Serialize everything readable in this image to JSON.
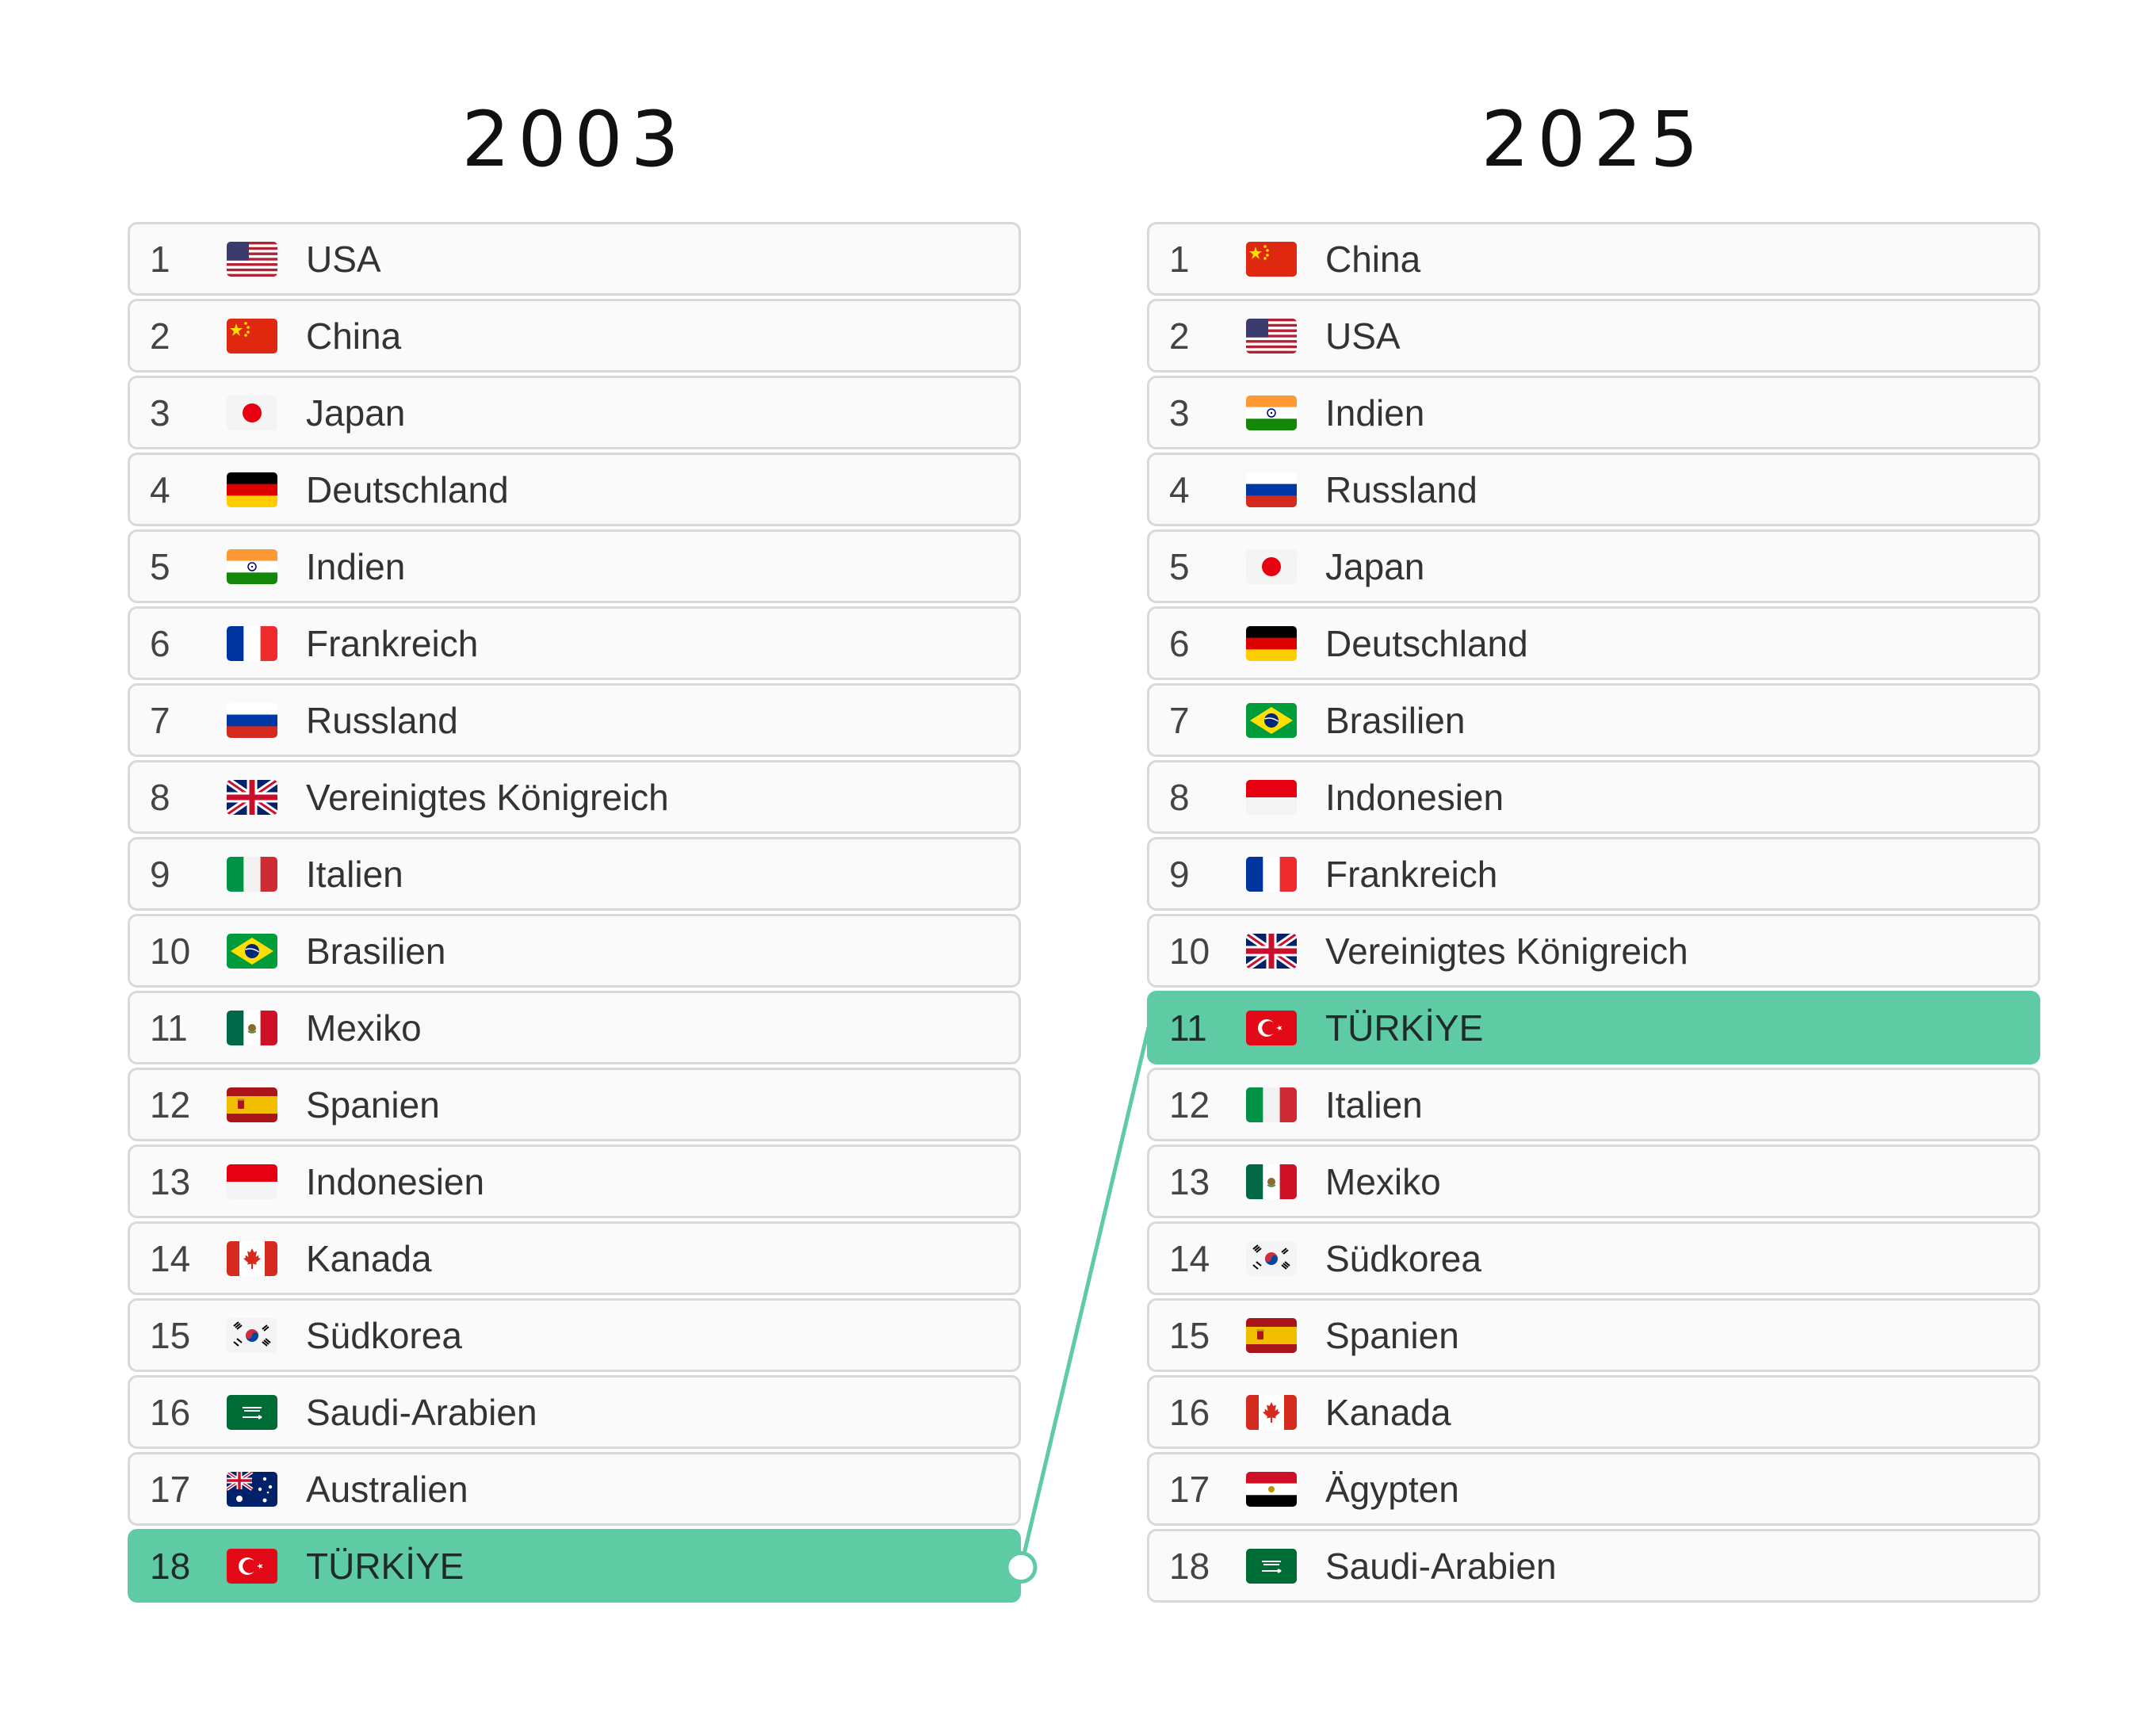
{
  "columns": [
    {
      "year": "2003",
      "rows": [
        {
          "rank": "1",
          "country": "USA",
          "flag": "us-flag-icon"
        },
        {
          "rank": "2",
          "country": "China",
          "flag": "cn-flag-icon"
        },
        {
          "rank": "3",
          "country": "Japan",
          "flag": "jp-flag-icon"
        },
        {
          "rank": "4",
          "country": "Deutschland",
          "flag": "de-flag-icon"
        },
        {
          "rank": "5",
          "country": "Indien",
          "flag": "in-flag-icon"
        },
        {
          "rank": "6",
          "country": "Frankreich",
          "flag": "fr-flag-icon"
        },
        {
          "rank": "7",
          "country": "Russland",
          "flag": "ru-flag-icon"
        },
        {
          "rank": "8",
          "country": "Vereinigtes Königreich",
          "flag": "gb-flag-icon"
        },
        {
          "rank": "9",
          "country": "Italien",
          "flag": "it-flag-icon"
        },
        {
          "rank": "10",
          "country": "Brasilien",
          "flag": "br-flag-icon"
        },
        {
          "rank": "11",
          "country": "Mexiko",
          "flag": "mx-flag-icon"
        },
        {
          "rank": "12",
          "country": "Spanien",
          "flag": "es-flag-icon"
        },
        {
          "rank": "13",
          "country": "Indonesien",
          "flag": "id-flag-icon"
        },
        {
          "rank": "14",
          "country": "Kanada",
          "flag": "ca-flag-icon"
        },
        {
          "rank": "15",
          "country": "Südkorea",
          "flag": "kr-flag-icon"
        },
        {
          "rank": "16",
          "country": "Saudi-Arabien",
          "flag": "sa-flag-icon"
        },
        {
          "rank": "17",
          "country": "Australien",
          "flag": "au-flag-icon"
        },
        {
          "rank": "18",
          "country": "TÜRKİYE",
          "flag": "tr-flag-icon",
          "highlight": true
        }
      ]
    },
    {
      "year": "2025",
      "rows": [
        {
          "rank": "1",
          "country": "China",
          "flag": "cn-flag-icon"
        },
        {
          "rank": "2",
          "country": "USA",
          "flag": "us-flag-icon"
        },
        {
          "rank": "3",
          "country": "Indien",
          "flag": "in-flag-icon"
        },
        {
          "rank": "4",
          "country": "Russland",
          "flag": "ru-flag-icon"
        },
        {
          "rank": "5",
          "country": "Japan",
          "flag": "jp-flag-icon"
        },
        {
          "rank": "6",
          "country": "Deutschland",
          "flag": "de-flag-icon"
        },
        {
          "rank": "7",
          "country": "Brasilien",
          "flag": "br-flag-icon"
        },
        {
          "rank": "8",
          "country": "Indonesien",
          "flag": "id-flag-icon"
        },
        {
          "rank": "9",
          "country": "Frankreich",
          "flag": "fr-flag-icon"
        },
        {
          "rank": "10",
          "country": "Vereinigtes Königreich",
          "flag": "gb-flag-icon"
        },
        {
          "rank": "11",
          "country": "TÜRKİYE",
          "flag": "tr-flag-icon",
          "highlight": true
        },
        {
          "rank": "12",
          "country": "Italien",
          "flag": "it-flag-icon"
        },
        {
          "rank": "13",
          "country": "Mexiko",
          "flag": "mx-flag-icon"
        },
        {
          "rank": "14",
          "country": "Südkorea",
          "flag": "kr-flag-icon"
        },
        {
          "rank": "15",
          "country": "Spanien",
          "flag": "es-flag-icon"
        },
        {
          "rank": "16",
          "country": "Kanada",
          "flag": "ca-flag-icon"
        },
        {
          "rank": "17",
          "country": "Ägypten",
          "flag": "eg-flag-icon"
        },
        {
          "rank": "18",
          "country": "Saudi-Arabien",
          "flag": "sa-flag-icon"
        }
      ]
    }
  ],
  "colors": {
    "highlight": "#5ecba4",
    "connector": "#5ecba4",
    "row_border": "#d9d9d9",
    "row_background": "#fafafa"
  }
}
